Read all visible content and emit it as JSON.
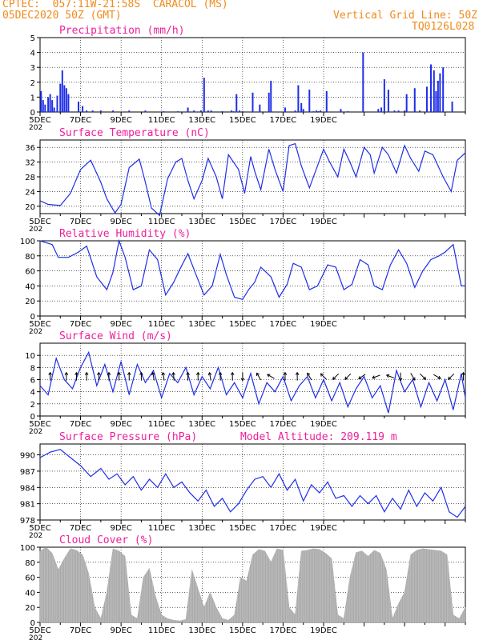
{
  "header": {
    "line1": "CPTEC:  057:11W-21:58S  CARACOL (MS)",
    "line2": "05DEC2020 50Z (GMT)",
    "grid_note": "Vertical Grid Line: 50Z",
    "code": "TQ0126L028"
  },
  "colors": {
    "header": "#f08a1c",
    "panel_title": "#ee1f9b",
    "series": "#1f2ee6",
    "cloud": "#a9a9a9",
    "arrow": "#000000"
  },
  "chart_data": [
    {
      "id": "precipitation",
      "type": "bar",
      "title": "Precipitation (mm/h)",
      "ylim": [
        0,
        5
      ],
      "yticks": [
        0,
        1,
        2,
        3,
        4,
        5
      ],
      "x": [
        0.05,
        0.15,
        0.25,
        0.4,
        0.5,
        0.6,
        0.7,
        0.85,
        1.0,
        1.1,
        1.2,
        1.3,
        1.4,
        1.9,
        2.1,
        2.3,
        2.6,
        3.0,
        3.6,
        4.4,
        5.2,
        6.1,
        6.8,
        7.3,
        7.6,
        7.95,
        8.1,
        8.3,
        8.45,
        9.0,
        9.45,
        9.55,
        9.7,
        9.85,
        10.0,
        10.5,
        10.85,
        11.3,
        11.4,
        12.1,
        12.6,
        12.75,
        12.9,
        13.0,
        13.3,
        13.5,
        13.65,
        13.75,
        13.85,
        14.15,
        14.85,
        15.2,
        15.95,
        16.7,
        16.85,
        17.0,
        17.2,
        17.5,
        17.7,
        18.0,
        18.1,
        18.5,
        18.75,
        19.1,
        19.3,
        19.45,
        19.55,
        19.65,
        19.75,
        19.9,
        20.35
      ],
      "values": [
        1.4,
        0.8,
        0.5,
        1.0,
        1.2,
        0.8,
        0.3,
        1.1,
        1.9,
        2.8,
        1.8,
        1.6,
        1.2,
        0.7,
        0.4,
        0.1,
        0.1,
        0.1,
        0.1,
        0.1,
        0.1,
        0.05,
        0.05,
        0.3,
        0.1,
        0.1,
        2.3,
        0.1,
        0.1,
        0.05,
        0.1,
        0.05,
        1.2,
        0.1,
        0.05,
        1.3,
        0.5,
        1.3,
        2.1,
        0.3,
        0.1,
        1.8,
        0.6,
        0.2,
        1.5,
        0.05,
        0.1,
        0.05,
        0.1,
        1.4,
        0.2,
        0.05,
        4.0,
        0.2,
        0.3,
        2.2,
        1.5,
        0.1,
        0.1,
        0.1,
        1.2,
        1.6,
        0.1,
        1.7,
        3.2,
        2.8,
        1.4,
        2.1,
        2.6,
        3.0,
        0.7
      ]
    },
    {
      "id": "surface-temperature",
      "type": "line",
      "title": "Surface Temperature (nC)",
      "ylim": [
        18,
        38
      ],
      "yticks": [
        20,
        24,
        28,
        32,
        36
      ],
      "x": [
        0.0,
        0.4,
        1.0,
        1.5,
        2.0,
        2.5,
        3.0,
        3.3,
        3.7,
        4.0,
        4.4,
        4.9,
        5.2,
        5.5,
        5.9,
        6.3,
        6.7,
        7.0,
        7.3,
        7.6,
        8.0,
        8.3,
        8.7,
        9.0,
        9.3,
        9.8,
        10.1,
        10.4,
        10.6,
        10.9,
        11.3,
        11.6,
        12.0,
        12.3,
        12.6,
        12.9,
        13.3,
        13.6,
        14.0,
        14.3,
        14.7,
        15.0,
        15.3,
        15.6,
        16.0,
        16.3,
        16.5,
        16.9,
        17.2,
        17.6,
        18.0,
        18.3,
        18.7,
        19.0,
        19.4,
        19.9,
        20.3,
        20.6,
        21.0
      ],
      "values": [
        21.5,
        20.5,
        20.2,
        23.5,
        30.0,
        32.5,
        26.5,
        22.0,
        18.2,
        20.5,
        30.5,
        32.8,
        26.5,
        19.5,
        17.5,
        27.5,
        32.0,
        33.0,
        27.0,
        22.0,
        27.0,
        33.0,
        28.0,
        22.0,
        34.0,
        30.0,
        23.5,
        33.5,
        29.5,
        24.5,
        35.5,
        30.0,
        24.0,
        36.5,
        37.0,
        31.0,
        25.0,
        29.5,
        35.5,
        32.0,
        28.0,
        35.5,
        32.0,
        28.0,
        36.0,
        34.0,
        29.0,
        36.0,
        34.0,
        29.0,
        36.5,
        33.0,
        29.5,
        35.0,
        34.0,
        28.0,
        24.0,
        32.5,
        34.5
      ]
    },
    {
      "id": "relative-humidity",
      "type": "line",
      "title": "Relative Humidity (%)",
      "ylim": [
        0,
        100
      ],
      "yticks": [
        0,
        20,
        40,
        60,
        80,
        100
      ],
      "x": [
        0.0,
        0.6,
        0.9,
        1.4,
        1.9,
        2.3,
        2.8,
        3.3,
        3.6,
        3.9,
        4.2,
        4.6,
        5.0,
        5.4,
        5.8,
        6.2,
        6.6,
        6.9,
        7.3,
        7.7,
        8.1,
        8.5,
        8.9,
        9.2,
        9.6,
        10.0,
        10.3,
        10.6,
        10.9,
        11.4,
        11.8,
        12.2,
        12.5,
        12.9,
        13.3,
        13.7,
        14.2,
        14.6,
        15.0,
        15.4,
        15.8,
        16.2,
        16.5,
        16.9,
        17.3,
        17.7,
        18.1,
        18.5,
        18.9,
        19.3,
        19.7,
        20.0,
        20.4,
        20.8,
        21.0
      ],
      "values": [
        100,
        95,
        78,
        78,
        85,
        93,
        52,
        35,
        58,
        100,
        78,
        35,
        40,
        88,
        75,
        28,
        45,
        62,
        83,
        55,
        28,
        40,
        82,
        55,
        25,
        22,
        35,
        45,
        65,
        52,
        25,
        42,
        70,
        65,
        35,
        40,
        68,
        65,
        35,
        42,
        75,
        68,
        40,
        35,
        68,
        88,
        70,
        38,
        60,
        75,
        80,
        85,
        95,
        40,
        40
      ]
    },
    {
      "id": "surface-wind",
      "type": "line",
      "title": "Surface Wind (m/s)",
      "ylim": [
        0,
        12
      ],
      "yticks": [
        0,
        2,
        4,
        6,
        8,
        10
      ],
      "x": [
        0.0,
        0.4,
        0.8,
        1.2,
        1.6,
        2.0,
        2.4,
        2.8,
        3.2,
        3.6,
        4.0,
        4.4,
        4.8,
        5.2,
        5.6,
        6.0,
        6.4,
        6.8,
        7.2,
        7.6,
        8.0,
        8.4,
        8.8,
        9.2,
        9.6,
        10.0,
        10.4,
        10.8,
        11.2,
        11.6,
        12.0,
        12.4,
        12.8,
        13.2,
        13.6,
        14.0,
        14.4,
        14.8,
        15.2,
        15.6,
        16.0,
        16.4,
        16.8,
        17.2,
        17.6,
        18.0,
        18.4,
        18.8,
        19.2,
        19.6,
        20.0,
        20.4,
        20.8,
        21.0
      ],
      "values": [
        5.0,
        3.5,
        9.5,
        6.0,
        4.5,
        8.0,
        10.5,
        5.0,
        8.5,
        4.0,
        9.0,
        3.5,
        8.5,
        5.5,
        7.5,
        3.0,
        7.0,
        5.5,
        8.0,
        3.5,
        6.5,
        4.5,
        8.0,
        3.5,
        5.5,
        3.0,
        7.0,
        2.0,
        5.5,
        4.0,
        6.5,
        2.5,
        5.0,
        6.5,
        3.0,
        6.0,
        2.5,
        5.5,
        1.5,
        4.5,
        6.5,
        3.0,
        5.0,
        0.5,
        7.5,
        4.0,
        6.0,
        1.5,
        5.5,
        2.5,
        6.0,
        1.0,
        7.0,
        3.0
      ],
      "arrows": [
        {
          "x": 0.5,
          "dir": 90
        },
        {
          "x": 1.3,
          "dir": 90
        },
        {
          "x": 1.8,
          "dir": 90
        },
        {
          "x": 2.3,
          "dir": 90
        },
        {
          "x": 2.9,
          "dir": 90
        },
        {
          "x": 3.4,
          "dir": 90
        },
        {
          "x": 3.9,
          "dir": 90
        },
        {
          "x": 4.4,
          "dir": 90
        },
        {
          "x": 5.0,
          "dir": 90
        },
        {
          "x": 5.6,
          "dir": 100
        },
        {
          "x": 6.1,
          "dir": 100
        },
        {
          "x": 6.6,
          "dir": 95
        },
        {
          "x": 7.3,
          "dir": 90
        },
        {
          "x": 7.8,
          "dir": 90
        },
        {
          "x": 8.4,
          "dir": 100
        },
        {
          "x": 8.9,
          "dir": 90
        },
        {
          "x": 9.5,
          "dir": 90
        },
        {
          "x": 10.0,
          "dir": 270
        },
        {
          "x": 10.8,
          "dir": 120
        },
        {
          "x": 11.4,
          "dir": 150
        },
        {
          "x": 12.1,
          "dir": 90
        },
        {
          "x": 12.7,
          "dir": 90
        },
        {
          "x": 13.3,
          "dir": 120
        },
        {
          "x": 14.0,
          "dir": 135
        },
        {
          "x": 14.6,
          "dir": 225
        },
        {
          "x": 15.2,
          "dir": 225
        },
        {
          "x": 15.9,
          "dir": 215
        },
        {
          "x": 16.6,
          "dir": 200
        },
        {
          "x": 17.3,
          "dir": 160
        },
        {
          "x": 17.8,
          "dir": 270
        },
        {
          "x": 18.4,
          "dir": 300
        },
        {
          "x": 18.9,
          "dir": 315
        },
        {
          "x": 19.6,
          "dir": 330
        },
        {
          "x": 20.3,
          "dir": 225
        },
        {
          "x": 20.9,
          "dir": 90
        }
      ]
    },
    {
      "id": "surface-pressure",
      "type": "line",
      "title": "Surface Pressure (hPa)",
      "annotation": "Model Altitude: 209.119 m",
      "ylim": [
        978,
        992
      ],
      "yticks": [
        978,
        981,
        984,
        987,
        990
      ],
      "x": [
        0.0,
        0.5,
        1.0,
        1.5,
        2.0,
        2.5,
        3.0,
        3.4,
        3.8,
        4.2,
        4.6,
        5.0,
        5.4,
        5.8,
        6.2,
        6.6,
        7.0,
        7.4,
        7.8,
        8.2,
        8.6,
        9.0,
        9.4,
        9.8,
        10.2,
        10.6,
        11.0,
        11.4,
        11.8,
        12.2,
        12.6,
        13.0,
        13.4,
        13.8,
        14.2,
        14.6,
        15.0,
        15.4,
        15.8,
        16.2,
        16.6,
        17.0,
        17.4,
        17.8,
        18.2,
        18.6,
        19.0,
        19.4,
        19.8,
        20.2,
        20.6,
        21.0
      ],
      "values": [
        989.5,
        990.5,
        991,
        989.5,
        988,
        986,
        987.5,
        985.5,
        986.5,
        984.5,
        986,
        983.5,
        985.5,
        984,
        986.5,
        984,
        985,
        983,
        981.5,
        983.5,
        980.5,
        982,
        979.5,
        981,
        983.5,
        985.5,
        986,
        984,
        986.5,
        983.5,
        985.5,
        981.5,
        984.5,
        983,
        985,
        982,
        982.5,
        980.5,
        982.5,
        981,
        982.5,
        979.5,
        982,
        980,
        983.5,
        980.5,
        983,
        981.5,
        984,
        979.5,
        978.5,
        980.5
      ]
    },
    {
      "id": "cloud-cover",
      "type": "area",
      "title": "Cloud Cover (%)",
      "ylim": [
        0,
        100
      ],
      "yticks": [
        0,
        20,
        40,
        60,
        80,
        100
      ],
      "x": [
        0.0,
        0.3,
        0.6,
        0.9,
        1.2,
        1.5,
        1.8,
        2.1,
        2.4,
        2.7,
        3.0,
        3.3,
        3.6,
        3.9,
        4.2,
        4.5,
        4.8,
        5.1,
        5.4,
        5.7,
        6.0,
        6.3,
        6.6,
        6.9,
        7.2,
        7.5,
        7.8,
        8.1,
        8.4,
        8.7,
        9.0,
        9.3,
        9.6,
        9.9,
        10.2,
        10.5,
        10.8,
        11.1,
        11.4,
        11.7,
        12.0,
        12.3,
        12.6,
        12.9,
        13.2,
        13.5,
        13.8,
        14.1,
        14.4,
        14.7,
        15.0,
        15.3,
        15.6,
        15.9,
        16.2,
        16.5,
        16.8,
        17.1,
        17.4,
        17.7,
        18.0,
        18.3,
        18.6,
        18.9,
        19.2,
        19.5,
        19.8,
        20.1,
        20.4,
        20.7,
        21.0
      ],
      "values": [
        95,
        100,
        92,
        70,
        85,
        98,
        96,
        90,
        65,
        20,
        5,
        40,
        98,
        95,
        88,
        10,
        5,
        60,
        72,
        35,
        10,
        5,
        3,
        2,
        4,
        70,
        45,
        20,
        40,
        20,
        5,
        3,
        10,
        60,
        55,
        90,
        97,
        95,
        80,
        98,
        96,
        20,
        10,
        95,
        96,
        98,
        97,
        92,
        85,
        10,
        5,
        60,
        93,
        95,
        88,
        96,
        92,
        70,
        5,
        25,
        40,
        90,
        96,
        98,
        97,
        96,
        95,
        90,
        10,
        5,
        20
      ]
    }
  ],
  "x_axis": {
    "tick_labels": [
      "5DEC",
      "7DEC",
      "9DEC",
      "11DEC",
      "13DEC",
      "15DEC",
      "17DEC",
      "19DEC"
    ],
    "tick_days": [
      0,
      2,
      4,
      6,
      8,
      10,
      12,
      14
    ],
    "cut_label": "202"
  }
}
